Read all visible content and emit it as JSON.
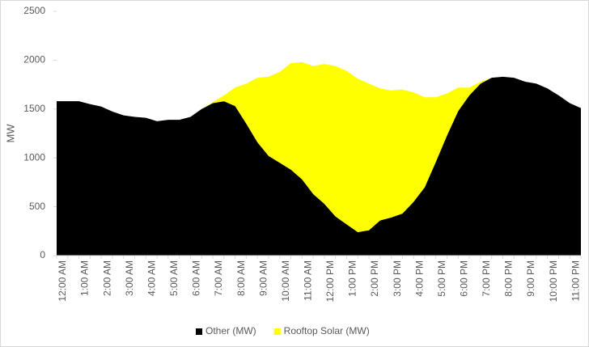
{
  "chart_data": {
    "type": "stacked_area",
    "ylabel": "MW",
    "categories": [
      "12:00 AM",
      null,
      "1:00 AM",
      null,
      "2:00 AM",
      null,
      "3:00 AM",
      null,
      "4:00 AM",
      null,
      "5:00 AM",
      null,
      "6:00 AM",
      null,
      "7:00 AM",
      null,
      "8:00 AM",
      null,
      "9:00 AM",
      null,
      "10:00 AM",
      null,
      "11:00 AM",
      null,
      "12:00 PM",
      null,
      "1:00 PM",
      null,
      "2:00 PM",
      null,
      "3:00 PM",
      null,
      "4:00 PM",
      null,
      "5:00 PM",
      null,
      "6:00 PM",
      null,
      "7:00 PM",
      null,
      "8:00 PM",
      null,
      "9:00 PM",
      null,
      "10:00 PM",
      null,
      "11:00 PM",
      null
    ],
    "series": [
      {
        "name": "Other (MW)",
        "color": "#000000",
        "values": [
          1580,
          1580,
          1580,
          1550,
          1525,
          1475,
          1435,
          1420,
          1410,
          1375,
          1390,
          1390,
          1420,
          1500,
          1560,
          1580,
          1530,
          1350,
          1160,
          1020,
          950,
          880,
          780,
          630,
          530,
          400,
          320,
          240,
          260,
          360,
          390,
          430,
          550,
          700,
          960,
          1230,
          1480,
          1640,
          1760,
          1820,
          1830,
          1820,
          1780,
          1760,
          1710,
          1640,
          1560,
          1510
        ]
      },
      {
        "name": "Rooftop Solar (MW)",
        "color": "#ffff00",
        "values": [
          0,
          0,
          0,
          0,
          0,
          0,
          0,
          0,
          0,
          0,
          0,
          0,
          0,
          0,
          10,
          60,
          190,
          410,
          660,
          810,
          930,
          1090,
          1200,
          1310,
          1430,
          1540,
          1570,
          1570,
          1500,
          1350,
          1300,
          1270,
          1120,
          920,
          660,
          430,
          240,
          80,
          20,
          0,
          0,
          0,
          0,
          0,
          0,
          0,
          0,
          0
        ]
      }
    ],
    "ylim": [
      0,
      2500
    ],
    "yticks": [
      0,
      500,
      1000,
      1500,
      2000,
      2500
    ],
    "legend": "bottom"
  }
}
